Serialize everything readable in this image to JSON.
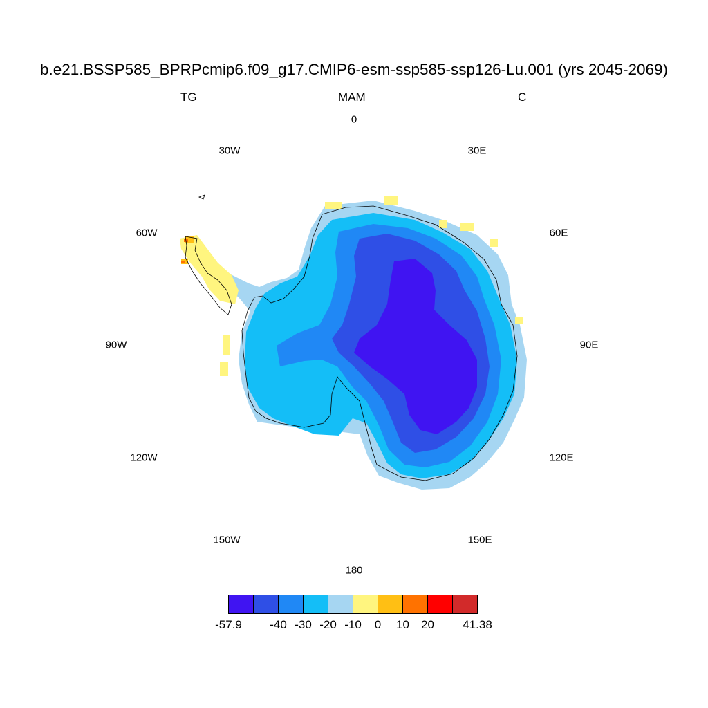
{
  "title": "b.e21.BSSP585_BPRPcmip6.f09_g17.CMIP6-esm-ssp585-ssp126-Lu.001 (yrs 2045-2069)",
  "left_label": "TG",
  "center_label": "MAM",
  "right_label": "C",
  "longitude_labels": [
    "0",
    "30E",
    "60E",
    "90E",
    "120E",
    "150E",
    "180",
    "150W",
    "120W",
    "90W",
    "60W",
    "30W"
  ],
  "colorbar": {
    "colors": [
      "#4014f2",
      "#2f4fe6",
      "#2088f5",
      "#14bef7",
      "#a6d6f2",
      "#fff57f",
      "#ffbf14",
      "#ff7200",
      "#ff0000",
      "#d22a2a"
    ],
    "tick_labels": [
      "-57.9",
      "-40",
      "-30",
      "-20",
      "-10",
      "0",
      "10",
      "20",
      "41.38"
    ]
  }
}
